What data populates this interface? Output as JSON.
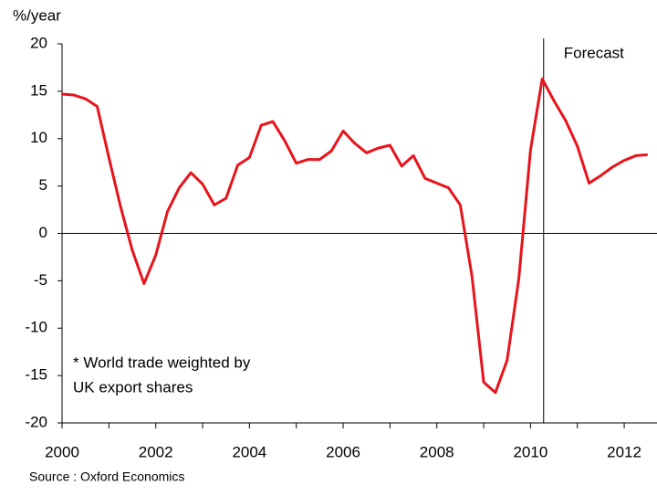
{
  "chart_data": {
    "type": "line",
    "y_axis_label": "%/year",
    "source": "Source : Oxford Economics",
    "annotation": "Forecast",
    "forecast_x": 2010.28,
    "note": [
      "* World trade weighted by",
      "UK export shares"
    ],
    "x": [
      2000,
      2000.25,
      2000.5,
      2000.75,
      2001,
      2001.25,
      2001.5,
      2001.75,
      2002,
      2002.25,
      2002.5,
      2002.75,
      2003,
      2003.25,
      2003.5,
      2003.75,
      2004,
      2004.25,
      2004.5,
      2004.75,
      2005,
      2005.25,
      2005.5,
      2005.75,
      2006,
      2006.25,
      2006.5,
      2006.75,
      2007,
      2007.25,
      2007.5,
      2007.75,
      2008,
      2008.25,
      2008.5,
      2008.75,
      2009,
      2009.25,
      2009.5,
      2009.75,
      2010,
      2010.25,
      2010.5,
      2010.75,
      2011,
      2011.25,
      2011.5,
      2011.75,
      2012,
      2012.25,
      2012.5
    ],
    "series": [
      {
        "color": "#e8141c",
        "values": [
          14.7,
          14.6,
          14.2,
          13.4,
          8.0,
          2.8,
          -1.8,
          -5.3,
          -2.3,
          2.3,
          4.8,
          6.4,
          5.2,
          3.0,
          3.7,
          7.2,
          8.0,
          11.4,
          11.8,
          9.8,
          7.4,
          7.8,
          7.8,
          8.7,
          10.8,
          9.5,
          8.5,
          9.0,
          9.3,
          7.1,
          8.2,
          5.8,
          5.3,
          4.8,
          3.0,
          -4.5,
          -15.7,
          -16.8,
          -13.4,
          -4.8,
          8.8,
          16.3,
          14.0,
          11.9,
          9.2,
          5.3,
          6.1,
          7.0,
          7.7,
          8.2,
          8.3
        ]
      }
    ],
    "xlim": [
      2000,
      2012.7
    ],
    "xticks": [
      2000,
      2002,
      2004,
      2006,
      2008,
      2010,
      2012
    ],
    "x_minor_ticks": [
      2001,
      2003,
      2005,
      2007,
      2009,
      2011
    ],
    "ylim": [
      -20,
      20
    ],
    "yticks": [
      -20,
      -15,
      -10,
      -5,
      0,
      5,
      10,
      15,
      20
    ]
  }
}
